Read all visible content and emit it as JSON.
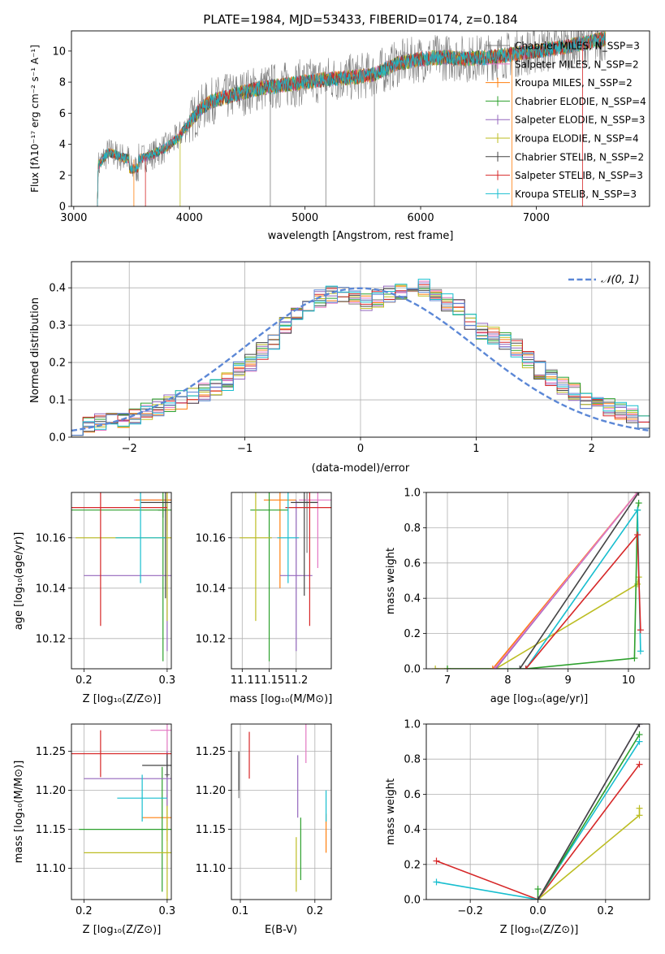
{
  "colors": {
    "chabrier_miles": "#808080",
    "salpeter_miles": "#e377c2",
    "kroupa_miles": "#ff7f0e",
    "chabrier_elodie": "#2ca02c",
    "salpeter_elodie": "#9467bd",
    "kroupa_elodie": "#bcbd22",
    "chabrier_stelib": "#444444",
    "salpeter_stelib": "#d62728",
    "kroupa_stelib": "#17becf",
    "normal": "#5b87d6",
    "gray_spectrum": "#7f7f7f"
  },
  "chart_data": [
    {
      "id": "spectrum",
      "type": "line",
      "title": "PLATE=1984, MJD=53433, FIBERID=0174, z=0.184",
      "xlabel": "wavelength [Angstrom, rest frame]",
      "ylabel": "Flux [fλ10⁻¹⁷ erg cm⁻² s⁻¹ A⁻¹]",
      "xlim": [
        2980,
        7980
      ],
      "ylim": [
        0,
        11.3
      ],
      "xticks": [
        "3000",
        "4000",
        "5000",
        "6000",
        "7000"
      ],
      "yticks": [
        "0",
        "2",
        "4",
        "6",
        "8",
        "10"
      ],
      "legend_position": "right",
      "legend": [
        "Chabrier MILES, N_SSP=3",
        "Salpeter MILES, N_SSP=2",
        "Kroupa MILES, N_SSP=2",
        "Chabrier ELODIE, N_SSP=4",
        "Salpeter ELODIE, N_SSP=3",
        "Kroupa ELODIE, N_SSP=4",
        "Chabrier STELIB, N_SSP=2",
        "Salpeter STELIB, N_SSP=3",
        "Kroupa STELIB, N_SSP=3"
      ],
      "continuum": {
        "x": [
          3210,
          3300,
          3400,
          3500,
          3600,
          3700,
          3800,
          3900,
          4000,
          4100,
          4200,
          4300,
          4400,
          4500,
          4600,
          4700,
          4800,
          4900,
          5000,
          5200,
          5400,
          5600,
          5800,
          6000,
          6200,
          6400,
          6600,
          6800,
          7000,
          7200,
          7400,
          7600
        ],
        "y": [
          2.6,
          3.5,
          3.2,
          3.0,
          3.1,
          3.4,
          3.8,
          4.4,
          5.4,
          6.3,
          6.8,
          7.0,
          7.2,
          7.4,
          7.6,
          7.7,
          7.8,
          7.9,
          8.0,
          8.2,
          8.3,
          8.5,
          9.2,
          9.5,
          9.6,
          9.5,
          9.6,
          9.8,
          10.0,
          10.2,
          10.5,
          10.8
        ]
      }
    },
    {
      "id": "residuals",
      "type": "histogram",
      "xlabel": "(data-model)/error",
      "ylabel": "Normed distribution",
      "xlim": [
        -2.5,
        2.5
      ],
      "ylim": [
        0,
        0.47
      ],
      "xticks": [
        "−2",
        "−1",
        "0",
        "1",
        "2"
      ],
      "yticks": [
        "0.0",
        "0.1",
        "0.2",
        "0.3",
        "0.4"
      ],
      "legend": [
        "𝒩(0, 1)"
      ],
      "legend_position": "top-right",
      "bins": [
        -2.5,
        -2.4,
        -2.3,
        -2.2,
        -2.1,
        -2.0,
        -1.9,
        -1.8,
        -1.7,
        -1.6,
        -1.5,
        -1.4,
        -1.3,
        -1.2,
        -1.1,
        -1.0,
        -0.9,
        -0.8,
        -0.7,
        -0.6,
        -0.5,
        -0.4,
        -0.3,
        -0.2,
        -0.1,
        0.0,
        0.1,
        0.2,
        0.3,
        0.4,
        0.5,
        0.6,
        0.7,
        0.8,
        0.9,
        1.0,
        1.1,
        1.2,
        1.3,
        1.4,
        1.5,
        1.6,
        1.7,
        1.8,
        1.9,
        2.0,
        2.1,
        2.2,
        2.3,
        2.4,
        2.5
      ],
      "base_density": [
        0.03,
        0.03,
        0.04,
        0.05,
        0.05,
        0.06,
        0.07,
        0.08,
        0.09,
        0.1,
        0.11,
        0.12,
        0.13,
        0.15,
        0.18,
        0.2,
        0.23,
        0.26,
        0.3,
        0.33,
        0.36,
        0.37,
        0.38,
        0.38,
        0.37,
        0.36,
        0.37,
        0.38,
        0.39,
        0.39,
        0.4,
        0.38,
        0.36,
        0.35,
        0.31,
        0.28,
        0.27,
        0.26,
        0.24,
        0.21,
        0.18,
        0.16,
        0.14,
        0.12,
        0.1,
        0.09,
        0.08,
        0.07,
        0.06,
        0.04
      ]
    },
    {
      "id": "age_vs_Z",
      "type": "errorbar",
      "xlabel": "Z [log₁₀(Z/Z⊙)]",
      "ylabel": "age  [log₁₀(age/yr)]",
      "xlim": [
        0.185,
        0.305
      ],
      "ylim": [
        10.108,
        10.178
      ],
      "xticks": [
        {
          "v": 0.2,
          "label": "0.2"
        },
        {
          "v": 0.3,
          "label": "0.3"
        }
      ],
      "yticks": [
        {
          "v": 10.12,
          "label": "10.12"
        },
        {
          "v": 10.14,
          "label": "10.14"
        },
        {
          "v": 10.16,
          "label": "10.16"
        }
      ],
      "points": [
        {
          "m": "chabrier_miles",
          "x": 0.295,
          "y": 10.171,
          "xe": 0.006,
          "ye": 0.003
        },
        {
          "m": "salpeter_miles",
          "x": 0.3,
          "y": 10.175,
          "xe": 0.04,
          "ye": 0.01
        },
        {
          "m": "kroupa_miles",
          "x": 0.3,
          "y": 10.175,
          "xe": 0.038,
          "ye": 0.012
        },
        {
          "m": "chabrier_elodie",
          "x": 0.295,
          "y": 10.171,
          "xe": 0.11,
          "ye": 0.06
        },
        {
          "m": "salpeter_elodie",
          "x": 0.3,
          "y": 10.145,
          "xe": 0.1,
          "ye": 0.03
        },
        {
          "m": "kroupa_elodie",
          "x": 0.3,
          "y": 10.16,
          "xe": 0.11,
          "ye": 0.033
        },
        {
          "m": "chabrier_stelib",
          "x": 0.298,
          "y": 10.174,
          "xe": 0.03,
          "ye": 0.038
        },
        {
          "m": "salpeter_stelib",
          "x": 0.22,
          "y": 10.172,
          "xe": 0.08,
          "ye": 0.047
        },
        {
          "m": "kroupa_stelib",
          "x": 0.268,
          "y": 10.16,
          "xe": 0.03,
          "ye": 0.018
        }
      ]
    },
    {
      "id": "age_vs_mass",
      "type": "errorbar",
      "xlabel": "mass [log₁₀(M/M⊙)]",
      "ylabel": "",
      "xlim": [
        11.08,
        11.265
      ],
      "ylim": [
        10.108,
        10.178
      ],
      "xticks": [
        {
          "v": 11.1,
          "label": "11.1"
        },
        {
          "v": 11.15,
          "label": "11.15"
        },
        {
          "v": 11.2,
          "label": "11.2"
        }
      ],
      "yticks": [
        {
          "v": 10.12,
          "label": "10.12"
        },
        {
          "v": 10.14,
          "label": "10.14"
        },
        {
          "v": 10.16,
          "label": "10.16"
        }
      ],
      "points": [
        {
          "m": "chabrier_miles",
          "x": 11.22,
          "y": 10.174,
          "xe": 0.02,
          "ye": 0.02
        },
        {
          "m": "salpeter_miles",
          "x": 11.24,
          "y": 10.175,
          "xe": 0.035,
          "ye": 0.027
        },
        {
          "m": "kroupa_miles",
          "x": 11.17,
          "y": 10.175,
          "xe": 0.03,
          "ye": 0.035
        },
        {
          "m": "chabrier_elodie",
          "x": 11.15,
          "y": 10.171,
          "xe": 0.035,
          "ye": 0.06
        },
        {
          "m": "salpeter_elodie",
          "x": 11.2,
          "y": 10.145,
          "xe": 0.03,
          "ye": 0.03
        },
        {
          "m": "kroupa_elodie",
          "x": 11.125,
          "y": 10.16,
          "xe": 0.03,
          "ye": 0.033
        },
        {
          "m": "chabrier_stelib",
          "x": 11.215,
          "y": 10.174,
          "xe": 0.025,
          "ye": 0.037
        },
        {
          "m": "salpeter_stelib",
          "x": 11.225,
          "y": 10.172,
          "xe": 0.045,
          "ye": 0.047
        },
        {
          "m": "kroupa_stelib",
          "x": 11.185,
          "y": 10.16,
          "xe": 0.02,
          "ye": 0.018
        }
      ]
    },
    {
      "id": "mass_weight_vs_age",
      "type": "line",
      "xlabel": "age  [log₁₀(age/yr)]",
      "ylabel": "mass weight",
      "xlim": [
        6.65,
        10.35
      ],
      "ylim": [
        0,
        1
      ],
      "xticks": [
        {
          "v": 7,
          "label": "7"
        },
        {
          "v": 8,
          "label": "8"
        },
        {
          "v": 9,
          "label": "9"
        },
        {
          "v": 10,
          "label": "10"
        }
      ],
      "yticks": [
        {
          "v": 0,
          "label": "0.0"
        },
        {
          "v": 0.2,
          "label": "0.2"
        },
        {
          "v": 0.4,
          "label": "0.4"
        },
        {
          "v": 0.6,
          "label": "0.6"
        },
        {
          "v": 0.8,
          "label": "0.8"
        },
        {
          "v": 1.0,
          "label": "1.0"
        }
      ],
      "series": [
        {
          "m": "kroupa_elodie",
          "x": [
            6.8,
            7.0,
            7.8,
            10.15,
            10.17
          ],
          "y": [
            0.0,
            0.0,
            0.0,
            0.48,
            0.52
          ]
        },
        {
          "m": "chabrier_elodie",
          "x": [
            7.0,
            8.3,
            10.1,
            10.15,
            10.17
          ],
          "y": [
            0.0,
            0.0,
            0.06,
            0.9,
            0.94
          ]
        },
        {
          "m": "kroupa_stelib",
          "x": [
            8.3,
            10.15,
            10.2
          ],
          "y": [
            0.0,
            0.9,
            0.1
          ]
        },
        {
          "m": "salpeter_stelib",
          "x": [
            8.3,
            10.15,
            10.2
          ],
          "y": [
            0.0,
            0.76,
            0.22
          ]
        },
        {
          "m": "salpeter_elodie",
          "x": [
            7.8,
            10.15
          ],
          "y": [
            0.0,
            1.0
          ]
        },
        {
          "m": "kroupa_miles",
          "x": [
            7.75,
            10.15
          ],
          "y": [
            0.0,
            1.0
          ]
        },
        {
          "m": "salpeter_miles",
          "x": [
            7.78,
            10.15
          ],
          "y": [
            0.0,
            1.0
          ]
        },
        {
          "m": "chabrier_stelib",
          "x": [
            8.2,
            10.17
          ],
          "y": [
            0.0,
            1.0
          ]
        }
      ]
    },
    {
      "id": "mass_vs_Z",
      "type": "errorbar",
      "xlabel": "Z [log₁₀(Z/Z⊙)]",
      "ylabel": "mass [log₁₀(M/M⊙)]",
      "xlim": [
        0.185,
        0.305
      ],
      "ylim": [
        11.06,
        11.285
      ],
      "xticks": [
        {
          "v": 0.2,
          "label": "0.2"
        },
        {
          "v": 0.3,
          "label": "0.3"
        }
      ],
      "yticks": [
        {
          "v": 11.1,
          "label": "11.10"
        },
        {
          "v": 11.15,
          "label": "11.15"
        },
        {
          "v": 11.2,
          "label": "11.20"
        },
        {
          "v": 11.25,
          "label": "11.25"
        }
      ],
      "points": [
        {
          "m": "chabrier_miles",
          "x": 0.3,
          "y": 11.22,
          "xe": 0.003,
          "ye": 0.03
        },
        {
          "m": "salpeter_miles",
          "x": 0.3,
          "y": 11.277,
          "xe": 0.02,
          "ye": 0.03
        },
        {
          "m": "kroupa_miles",
          "x": 0.3,
          "y": 11.165,
          "xe": 0.03,
          "ye": 0.03
        },
        {
          "m": "chabrier_elodie",
          "x": 0.294,
          "y": 11.15,
          "xe": 0.1,
          "ye": 0.08
        },
        {
          "m": "salpeter_elodie",
          "x": 0.3,
          "y": 11.215,
          "xe": 0.1,
          "ye": 0.035
        },
        {
          "m": "kroupa_elodie",
          "x": 0.3,
          "y": 11.12,
          "xe": 0.1,
          "ye": 0.06
        },
        {
          "m": "chabrier_stelib",
          "x": 0.3,
          "y": 11.232,
          "xe": 0.03,
          "ye": 0.015
        },
        {
          "m": "salpeter_stelib",
          "x": 0.22,
          "y": 11.247,
          "xe": 0.12,
          "ye": 0.03
        },
        {
          "m": "kroupa_stelib",
          "x": 0.27,
          "y": 11.19,
          "xe": 0.03,
          "ye": 0.03
        }
      ]
    },
    {
      "id": "mass_vs_ebv",
      "type": "errorbar",
      "xlabel": "E(B-V)",
      "ylabel": "",
      "xlim": [
        0.088,
        0.222
      ],
      "ylim": [
        11.06,
        11.285
      ],
      "xticks": [
        {
          "v": 0.1,
          "label": "0.1"
        },
        {
          "v": 0.2,
          "label": "0.2"
        }
      ],
      "yticks": [
        {
          "v": 11.1,
          "label": "11.10"
        },
        {
          "v": 11.15,
          "label": "11.15"
        },
        {
          "v": 11.2,
          "label": "11.20"
        },
        {
          "v": 11.25,
          "label": "11.25"
        }
      ],
      "points": [
        {
          "m": "chabrier_miles",
          "x": 0.098,
          "y": 11.22,
          "xe": 0,
          "ye": 0.03
        },
        {
          "m": "salpeter_miles",
          "x": 0.188,
          "y": 11.26,
          "xe": 0,
          "ye": 0.025
        },
        {
          "m": "kroupa_miles",
          "x": 0.215,
          "y": 11.145,
          "xe": 0,
          "ye": 0.025
        },
        {
          "m": "chabrier_elodie",
          "x": 0.181,
          "y": 11.125,
          "xe": 0,
          "ye": 0.04
        },
        {
          "m": "salpeter_elodie",
          "x": 0.177,
          "y": 11.205,
          "xe": 0,
          "ye": 0.04
        },
        {
          "m": "kroupa_elodie",
          "x": 0.175,
          "y": 11.105,
          "xe": 0,
          "ye": 0.035
        },
        {
          "m": "chabrier_stelib",
          "x": 0.098,
          "y": 11.225,
          "xe": 0,
          "ye": 0.025
        },
        {
          "m": "salpeter_stelib",
          "x": 0.112,
          "y": 11.245,
          "xe": 0,
          "ye": 0.03
        },
        {
          "m": "kroupa_stelib",
          "x": 0.215,
          "y": 11.18,
          "xe": 0,
          "ye": 0.02
        }
      ]
    },
    {
      "id": "mass_weight_vs_Z",
      "type": "line",
      "xlabel": "Z [log₁₀(Z/Z⊙)]",
      "ylabel": "mass weight",
      "xlim": [
        -0.33,
        0.33
      ],
      "ylim": [
        0,
        1
      ],
      "xticks": [
        {
          "v": -0.2,
          "label": "−0.2"
        },
        {
          "v": 0,
          "label": "0.0"
        },
        {
          "v": 0.2,
          "label": "0.2"
        }
      ],
      "yticks": [
        {
          "v": 0,
          "label": "0.0"
        },
        {
          "v": 0.2,
          "label": "0.2"
        },
        {
          "v": 0.4,
          "label": "0.4"
        },
        {
          "v": 0.6,
          "label": "0.6"
        },
        {
          "v": 0.8,
          "label": "0.8"
        },
        {
          "v": 1.0,
          "label": "1.0"
        }
      ],
      "series": [
        {
          "m": "salpeter_stelib",
          "x": [
            -0.3,
            0.0,
            0.3
          ],
          "y": [
            0.22,
            0.0,
            0.77
          ]
        },
        {
          "m": "kroupa_stelib",
          "x": [
            -0.3,
            0.0,
            0.3
          ],
          "y": [
            0.1,
            0.0,
            0.9
          ]
        },
        {
          "m": "kroupa_elodie",
          "x": [
            0.0,
            0.3,
            0.3
          ],
          "y": [
            0.0,
            0.48,
            0.52
          ]
        },
        {
          "m": "chabrier_elodie",
          "x": [
            0.0,
            0.0,
            0.3
          ],
          "y": [
            0.06,
            0.0,
            0.94
          ]
        },
        {
          "m": "salpeter_elodie",
          "x": [
            0.0,
            0.3
          ],
          "y": [
            0.0,
            1.0
          ]
        },
        {
          "m": "chabrier_stelib",
          "x": [
            0.0,
            0.3
          ],
          "y": [
            0.0,
            1.0
          ]
        }
      ]
    }
  ]
}
